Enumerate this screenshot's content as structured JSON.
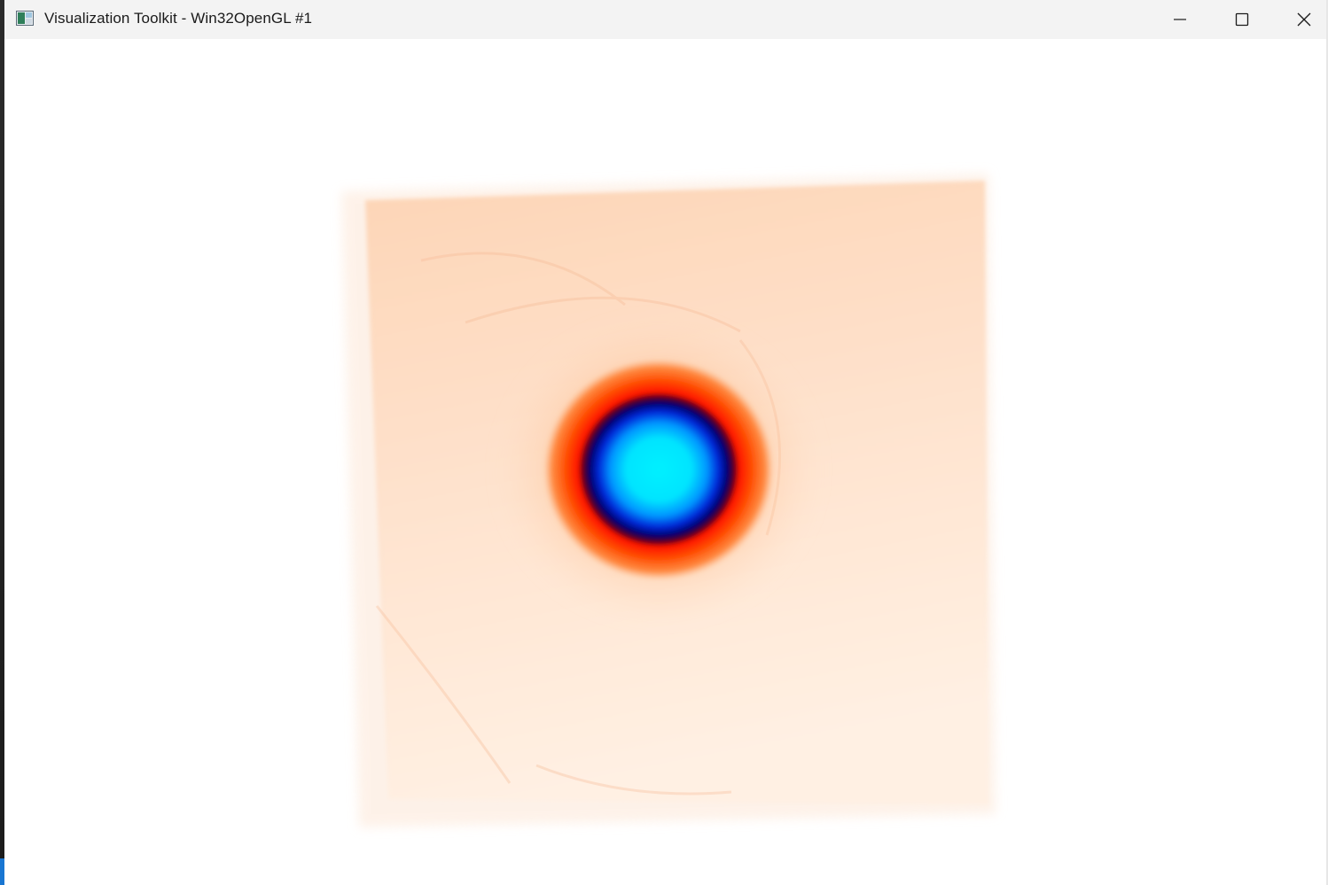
{
  "window": {
    "title": "Visualization Toolkit - Win32OpenGL #1",
    "icon": "vtk-app-icon",
    "controls": {
      "minimize_icon": "minimize-icon",
      "maximize_icon": "maximize-icon",
      "close_icon": "close-icon"
    }
  },
  "render": {
    "background": "#ffffff",
    "colormap": {
      "outer": "#fee0c8",
      "mid_orange": "#ff6a10",
      "red": "#ff1500",
      "dark_blue": "#00007a",
      "blue": "#0055ff",
      "cyan": "#00eaff"
    }
  }
}
